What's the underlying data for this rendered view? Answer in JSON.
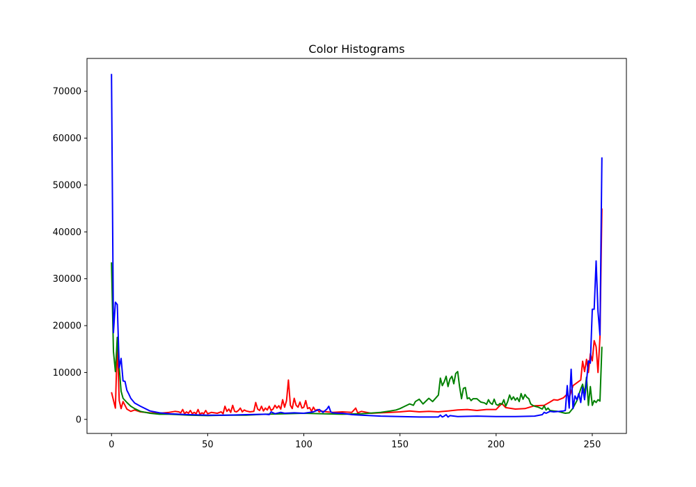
{
  "chart_data": {
    "type": "line",
    "title": "Color Histograms",
    "xlabel": "",
    "ylabel": "",
    "xlim": [
      -12.75,
      267.75
    ],
    "ylim": [
      -3000,
      77000
    ],
    "xticks": [
      0,
      50,
      100,
      150,
      200,
      250
    ],
    "yticks": [
      0,
      10000,
      20000,
      30000,
      40000,
      50000,
      60000,
      70000
    ],
    "grid": false,
    "legend": "none",
    "series": [
      {
        "color": "#ff0000",
        "x": [
          0,
          2,
          3,
          4,
          5,
          6,
          8,
          10,
          12,
          15,
          20,
          25,
          30,
          33,
          35,
          36,
          37,
          38,
          39,
          40,
          41,
          42,
          43,
          44,
          45,
          46,
          47,
          48,
          49,
          50,
          52,
          55,
          57,
          58,
          59,
          60,
          61,
          62,
          63,
          64,
          65,
          66,
          67,
          68,
          69,
          70,
          72,
          74,
          75,
          76,
          77,
          78,
          79,
          80,
          81,
          82,
          83,
          84,
          85,
          86,
          87,
          88,
          89,
          90,
          91,
          92,
          93,
          94,
          95,
          96,
          97,
          98,
          99,
          100,
          101,
          102,
          103,
          104,
          105,
          106,
          107,
          108,
          109,
          110,
          112,
          115,
          120,
          125,
          127,
          128,
          130,
          135,
          140,
          145,
          150,
          155,
          160,
          165,
          170,
          175,
          180,
          185,
          190,
          195,
          200,
          203,
          205,
          210,
          215,
          220,
          225,
          228,
          230,
          232,
          235,
          237,
          238,
          240,
          242,
          244,
          245,
          246,
          247,
          248,
          249,
          250,
          251,
          252,
          253,
          254,
          255
        ],
        "values": [
          5800,
          2400,
          16500,
          4000,
          2300,
          3800,
          2200,
          1700,
          2000,
          1600,
          1400,
          1300,
          1500,
          1700,
          1600,
          1400,
          2100,
          1200,
          1600,
          1300,
          1900,
          1200,
          1500,
          1200,
          2100,
          1100,
          1400,
          1200,
          1900,
          1200,
          1500,
          1300,
          1600,
          1200,
          2800,
          1700,
          2200,
          1500,
          3000,
          1700,
          1600,
          1900,
          2400,
          1600,
          2000,
          1800,
          1600,
          1700,
          3600,
          2200,
          1900,
          2800,
          1800,
          2400,
          2000,
          2800,
          1900,
          2200,
          3000,
          2400,
          2900,
          2200,
          4200,
          2600,
          4000,
          8400,
          3000,
          2300,
          4500,
          3000,
          2600,
          3700,
          2400,
          2600,
          4000,
          2300,
          2500,
          1700,
          2600,
          1900,
          2100,
          1600,
          1800,
          1700,
          1600,
          1500,
          1600,
          1500,
          2400,
          1400,
          1700,
          1300,
          1400,
          1500,
          1600,
          1800,
          1600,
          1700,
          1600,
          1800,
          2000,
          2100,
          1900,
          2100,
          2100,
          3400,
          2500,
          2200,
          2300,
          2900,
          3000,
          3700,
          4200,
          4100,
          4600,
          5400,
          4600,
          7200,
          7800,
          8400,
          12400,
          10200,
          12800,
          10000,
          14000,
          12500,
          16800,
          15500,
          10000,
          17500,
          45000
        ]
      },
      {
        "color": "#008000",
        "x": [
          0,
          1,
          2,
          3,
          4,
          5,
          6,
          8,
          10,
          12,
          15,
          20,
          25,
          30,
          35,
          40,
          50,
          60,
          70,
          80,
          90,
          100,
          110,
          120,
          130,
          140,
          145,
          148,
          150,
          152,
          155,
          157,
          158,
          160,
          162,
          165,
          167,
          170,
          171,
          172,
          173,
          174,
          175,
          176,
          177,
          178,
          179,
          180,
          181,
          182,
          183,
          184,
          185,
          186,
          187,
          188,
          190,
          192,
          194,
          195,
          196,
          197,
          198,
          199,
          200,
          201,
          202,
          203,
          204,
          205,
          206,
          207,
          208,
          209,
          210,
          211,
          212,
          213,
          214,
          215,
          216,
          217,
          218,
          219,
          220,
          222,
          224,
          225,
          226,
          227,
          228,
          230,
          232,
          234,
          235,
          236,
          238,
          240,
          242,
          244,
          245,
          246,
          247,
          248,
          249,
          250,
          251,
          252,
          253,
          254,
          255
        ],
        "values": [
          33500,
          14500,
          10200,
          17500,
          11000,
          6000,
          4500,
          3600,
          2800,
          2300,
          1700,
          1300,
          1100,
          1100,
          1000,
          900,
          800,
          900,
          900,
          1100,
          1200,
          1300,
          1200,
          1100,
          1200,
          1500,
          1800,
          2000,
          2300,
          2700,
          3300,
          3000,
          3800,
          4300,
          3300,
          4500,
          3800,
          5200,
          8800,
          7200,
          8000,
          9200,
          7000,
          8600,
          9200,
          7600,
          9800,
          10200,
          7000,
          4400,
          6600,
          6800,
          4400,
          4600,
          4000,
          4400,
          4400,
          3700,
          3500,
          3200,
          4200,
          3500,
          3200,
          4300,
          3200,
          3000,
          3400,
          3200,
          4200,
          2800,
          3800,
          5200,
          4200,
          4800,
          4100,
          4600,
          3800,
          5500,
          4300,
          5300,
          4700,
          4400,
          3300,
          3000,
          2800,
          2600,
          2200,
          2900,
          2000,
          2400,
          1900,
          1800,
          1700,
          1500,
          1400,
          1300,
          1400,
          2400,
          4000,
          6500,
          7500,
          5500,
          9000,
          3000,
          7000,
          3000,
          4000,
          3600,
          4200,
          3900,
          15500
        ]
      },
      {
        "color": "#0000ff",
        "x": [
          0,
          1,
          2,
          3,
          4,
          5,
          6,
          7,
          8,
          9,
          10,
          12,
          15,
          20,
          25,
          30,
          35,
          40,
          50,
          60,
          70,
          80,
          82,
          83,
          85,
          88,
          90,
          95,
          100,
          105,
          108,
          110,
          112,
          113,
          114,
          115,
          118,
          120,
          125,
          130,
          140,
          150,
          160,
          170,
          171,
          172,
          173,
          174,
          175,
          176,
          180,
          190,
          200,
          210,
          220,
          224,
          225,
          226,
          228,
          230,
          233,
          235,
          236,
          237,
          238,
          239,
          240,
          241,
          242,
          243,
          244,
          245,
          246,
          247,
          248,
          249,
          250,
          251,
          252,
          253,
          254,
          255
        ],
        "values": [
          73700,
          18500,
          25000,
          24500,
          11000,
          13000,
          8200,
          8100,
          6200,
          5400,
          4500,
          3500,
          2800,
          1800,
          1400,
          1200,
          1100,
          1000,
          900,
          900,
          1000,
          1100,
          1000,
          1600,
          1200,
          1500,
          1300,
          1400,
          1300,
          1600,
          2100,
          1500,
          2200,
          2800,
          1600,
          1400,
          1300,
          1300,
          1000,
          900,
          700,
          600,
          500,
          500,
          900,
          500,
          700,
          1000,
          500,
          800,
          600,
          700,
          600,
          600,
          700,
          1000,
          1500,
          1300,
          1700,
          1600,
          1700,
          1800,
          1900,
          7200,
          2400,
          10700,
          2300,
          5000,
          4200,
          5500,
          3600,
          6800,
          4200,
          8000,
          12500,
          12000,
          23500,
          23500,
          33800,
          23000,
          18000,
          55900
        ]
      }
    ]
  }
}
